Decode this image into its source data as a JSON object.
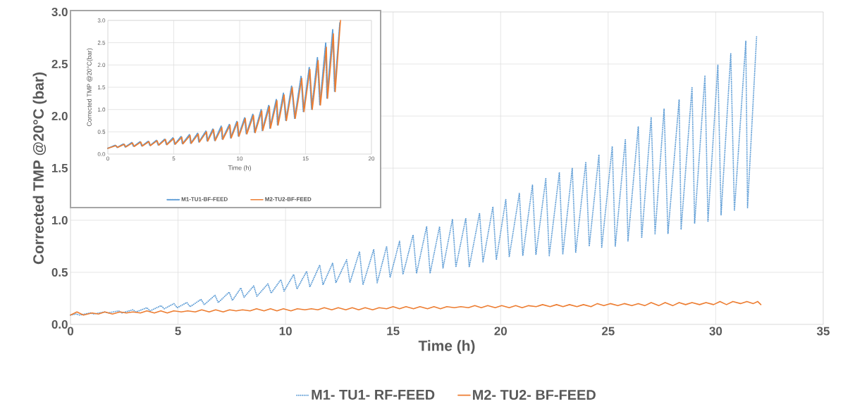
{
  "chart_data": [
    {
      "type": "line",
      "xlabel": "Time (h)",
      "ylabel": "Corrected TMP @20°C (bar)",
      "xlim": [
        0,
        35
      ],
      "ylim": [
        0,
        3
      ],
      "xticks": [
        0,
        5,
        10,
        15,
        20,
        25,
        30,
        35
      ],
      "yticks": [
        {
          "value": 0,
          "label": "0.0"
        },
        {
          "value": 0.5,
          "label": "0.5"
        },
        {
          "value": 1,
          "label": "1.0"
        },
        {
          "value": 1.5,
          "label": "1.5"
        },
        {
          "value": 2,
          "label": "2.0"
        },
        {
          "value": 2.5,
          "label": "2.5"
        },
        {
          "value": 3,
          "label": "3.0"
        }
      ],
      "grid": true,
      "legend": "bottom",
      "series": [
        {
          "name": "M1- TU1- RF-FEED",
          "color": "#5b9bd5",
          "line_style": "dotted",
          "x": [
            0,
            0.27,
            0.42,
            0.93,
            1.08,
            1.58,
            1.73,
            2.24,
            2.39,
            2.9,
            3.05,
            3.55,
            3.7,
            4.21,
            4.36,
            4.81,
            4.96,
            5.41,
            5.56,
            6.07,
            6.22,
            6.72,
            6.87,
            7.38,
            7.53,
            7.92,
            8.07,
            8.52,
            8.67,
            9.18,
            9.33,
            9.78,
            9.93,
            10.38,
            10.53,
            10.98,
            11.13,
            11.59,
            11.74,
            12.19,
            12.34,
            12.84,
            12.99,
            13.44,
            13.6,
            14.1,
            14.26,
            14.7,
            14.86,
            15.3,
            15.46,
            15.93,
            16.09,
            16.56,
            16.72,
            17.16,
            17.32,
            17.76,
            17.92,
            18.38,
            18.54,
            19.02,
            19.18,
            19.64,
            19.8,
            20.24,
            20.4,
            20.87,
            21.03,
            21.48,
            21.64,
            22.1,
            22.26,
            22.73,
            22.89,
            23.33,
            23.49,
            23.96,
            24.12,
            24.57,
            24.7,
            25.19,
            25.33,
            25.8,
            25.92,
            26.4,
            26.56,
            27.0,
            27.18,
            27.6,
            27.78,
            28.3,
            28.39,
            28.9,
            29.02,
            29.5,
            29.64,
            30.1,
            30.25,
            30.7,
            30.87,
            31.4,
            31.48,
            31.9
          ],
          "values": [
            0.09,
            0.1,
            0.09,
            0.11,
            0.1,
            0.12,
            0.11,
            0.13,
            0.11,
            0.14,
            0.12,
            0.16,
            0.13,
            0.18,
            0.15,
            0.2,
            0.16,
            0.21,
            0.17,
            0.24,
            0.19,
            0.28,
            0.21,
            0.31,
            0.23,
            0.35,
            0.26,
            0.37,
            0.27,
            0.39,
            0.3,
            0.43,
            0.32,
            0.48,
            0.34,
            0.51,
            0.36,
            0.57,
            0.38,
            0.59,
            0.4,
            0.62,
            0.4,
            0.7,
            0.38,
            0.72,
            0.4,
            0.75,
            0.45,
            0.8,
            0.48,
            0.86,
            0.49,
            0.94,
            0.49,
            0.94,
            0.54,
            1.01,
            0.55,
            1.02,
            0.55,
            1.07,
            0.6,
            1.13,
            0.62,
            1.2,
            0.65,
            1.26,
            0.66,
            1.34,
            0.67,
            1.4,
            0.66,
            1.46,
            0.67,
            1.5,
            0.69,
            1.56,
            0.75,
            1.63,
            0.74,
            1.71,
            0.75,
            1.78,
            0.8,
            1.9,
            0.83,
            1.99,
            0.87,
            2.07,
            0.87,
            2.16,
            0.91,
            2.28,
            0.97,
            2.39,
            0.99,
            2.49,
            1.05,
            2.6,
            1.09,
            2.72,
            1.12,
            2.76
          ]
        },
        {
          "name": "M2- TU2- BF-FEED",
          "color": "#ed7d31",
          "line_style": "solid",
          "x": [
            0,
            0.3,
            0.6,
            1.0,
            1.3,
            1.6,
            1.95,
            2.3,
            2.6,
            2.9,
            3.25,
            3.55,
            3.9,
            4.2,
            4.5,
            4.8,
            5.15,
            5.45,
            5.8,
            6.1,
            6.45,
            6.75,
            7.1,
            7.4,
            7.7,
            8.0,
            8.35,
            8.65,
            9.0,
            9.3,
            9.6,
            9.9,
            10.25,
            10.55,
            10.9,
            11.2,
            11.5,
            11.8,
            12.15,
            12.45,
            12.8,
            13.1,
            13.4,
            13.7,
            14.05,
            14.35,
            14.7,
            15.0,
            15.3,
            15.6,
            15.95,
            16.25,
            16.6,
            16.9,
            17.2,
            17.5,
            17.85,
            18.15,
            18.5,
            18.8,
            19.1,
            19.4,
            19.75,
            20.05,
            20.4,
            20.7,
            21.0,
            21.3,
            21.65,
            21.95,
            22.3,
            22.6,
            22.9,
            23.2,
            23.55,
            23.85,
            24.2,
            24.5,
            24.8,
            25.1,
            25.45,
            25.75,
            26.1,
            26.4,
            26.7,
            27.0,
            27.35,
            27.65,
            28.0,
            28.3,
            28.6,
            28.9,
            29.25,
            29.55,
            29.9,
            30.2,
            30.5,
            30.8,
            31.15,
            31.45,
            31.75,
            31.95,
            32.1
          ],
          "values": [
            0.09,
            0.12,
            0.09,
            0.11,
            0.1,
            0.12,
            0.1,
            0.12,
            0.11,
            0.12,
            0.11,
            0.13,
            0.11,
            0.13,
            0.11,
            0.13,
            0.12,
            0.13,
            0.12,
            0.14,
            0.12,
            0.14,
            0.12,
            0.14,
            0.13,
            0.14,
            0.13,
            0.15,
            0.13,
            0.15,
            0.13,
            0.15,
            0.13,
            0.15,
            0.14,
            0.15,
            0.14,
            0.16,
            0.14,
            0.16,
            0.14,
            0.16,
            0.14,
            0.16,
            0.14,
            0.16,
            0.15,
            0.17,
            0.15,
            0.17,
            0.15,
            0.17,
            0.15,
            0.17,
            0.15,
            0.17,
            0.16,
            0.17,
            0.16,
            0.18,
            0.16,
            0.18,
            0.16,
            0.18,
            0.16,
            0.18,
            0.16,
            0.18,
            0.17,
            0.19,
            0.17,
            0.19,
            0.17,
            0.19,
            0.17,
            0.19,
            0.17,
            0.2,
            0.18,
            0.2,
            0.18,
            0.2,
            0.18,
            0.2,
            0.18,
            0.21,
            0.18,
            0.21,
            0.18,
            0.21,
            0.19,
            0.21,
            0.19,
            0.21,
            0.19,
            0.22,
            0.19,
            0.22,
            0.2,
            0.22,
            0.2,
            0.22,
            0.19
          ]
        }
      ]
    },
    {
      "type": "line",
      "xlabel": "Time (h)",
      "ylabel": "Corrected TMP @20°C(bar)",
      "xlim": [
        0,
        20
      ],
      "ylim": [
        0,
        3
      ],
      "xticks": [
        0,
        5,
        10,
        15,
        20
      ],
      "yticks": [
        {
          "value": 0,
          "label": "0.0"
        },
        {
          "value": 0.5,
          "label": "0.5"
        },
        {
          "value": 1,
          "label": "1.0"
        },
        {
          "value": 1.5,
          "label": "1.5"
        },
        {
          "value": 2,
          "label": "2.0"
        },
        {
          "value": 2.5,
          "label": "2.5"
        },
        {
          "value": 3,
          "label": "3.0"
        }
      ],
      "grid": true,
      "legend": "bottom",
      "series": [
        {
          "name": "M1-TU1-BF-FEED",
          "color": "#5b9bd5",
          "line_style": "dotted",
          "x": [
            0,
            0.57,
            0.7,
            1.2,
            1.32,
            1.82,
            1.95,
            2.45,
            2.57,
            3.07,
            3.19,
            3.69,
            3.82,
            4.32,
            4.44,
            4.94,
            5.07,
            5.56,
            5.65,
            6.19,
            6.28,
            6.81,
            6.9,
            7.44,
            7.53,
            7.97,
            8.1,
            8.6,
            8.68,
            9.22,
            9.31,
            9.79,
            9.9,
            10.38,
            10.5,
            11.0,
            11.13,
            11.63,
            11.71,
            12.21,
            12.29,
            12.78,
            12.87,
            13.32,
            13.5,
            13.94,
            14.17,
            14.66,
            14.83,
            15.28,
            15.46,
            15.9,
            16.08,
            16.53,
            16.62,
            17.06,
            17.2,
            17.6
          ],
          "values": [
            0.13,
            0.2,
            0.15,
            0.23,
            0.16,
            0.26,
            0.17,
            0.28,
            0.18,
            0.29,
            0.19,
            0.31,
            0.2,
            0.34,
            0.21,
            0.37,
            0.22,
            0.4,
            0.23,
            0.44,
            0.24,
            0.47,
            0.27,
            0.52,
            0.29,
            0.57,
            0.3,
            0.63,
            0.33,
            0.67,
            0.36,
            0.74,
            0.4,
            0.82,
            0.45,
            0.9,
            0.48,
            1.0,
            0.53,
            1.1,
            0.58,
            1.23,
            0.65,
            1.37,
            0.75,
            1.53,
            0.8,
            1.75,
            0.95,
            1.95,
            1.0,
            2.17,
            1.1,
            2.5,
            1.25,
            2.8,
            1.4,
            2.95
          ]
        },
        {
          "name": "M2-TU2-BF-FEED",
          "color": "#ed7d31",
          "line_style": "solid",
          "x": [
            0,
            0.62,
            0.75,
            1.25,
            1.37,
            1.87,
            2.0,
            2.5,
            2.62,
            3.12,
            3.24,
            3.74,
            3.87,
            4.37,
            4.49,
            4.99,
            5.12,
            5.61,
            5.7,
            6.24,
            6.33,
            6.86,
            6.95,
            7.49,
            7.58,
            8.02,
            8.15,
            8.65,
            8.73,
            9.27,
            9.36,
            9.84,
            9.95,
            10.43,
            10.55,
            11.05,
            11.18,
            11.68,
            11.76,
            12.26,
            12.34,
            12.83,
            12.92,
            13.37,
            13.55,
            13.99,
            14.22,
            14.71,
            14.88,
            15.33,
            15.51,
            15.95,
            16.13,
            16.58,
            16.67,
            17.11,
            17.25,
            17.65
          ],
          "values": [
            0.13,
            0.19,
            0.15,
            0.22,
            0.16,
            0.25,
            0.17,
            0.27,
            0.18,
            0.28,
            0.19,
            0.3,
            0.2,
            0.33,
            0.21,
            0.35,
            0.22,
            0.38,
            0.23,
            0.42,
            0.24,
            0.45,
            0.27,
            0.5,
            0.29,
            0.55,
            0.3,
            0.6,
            0.33,
            0.65,
            0.36,
            0.72,
            0.4,
            0.8,
            0.45,
            0.87,
            0.48,
            0.97,
            0.53,
            1.07,
            0.58,
            1.2,
            0.65,
            1.33,
            0.75,
            1.5,
            0.8,
            1.7,
            0.95,
            1.9,
            1.0,
            2.1,
            1.1,
            2.4,
            1.25,
            2.7,
            1.4,
            3.0
          ]
        }
      ]
    }
  ]
}
